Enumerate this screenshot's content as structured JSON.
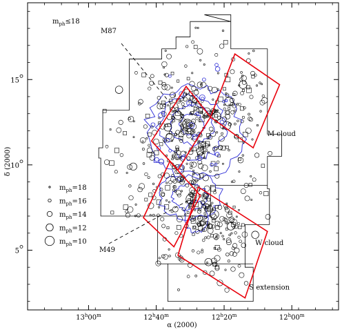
{
  "chart_data": {
    "type": "scatter",
    "xlabel": "α (2000)",
    "ylabel": "δ (2000)",
    "x_unit": "hours of right ascension (decreasing to the right)",
    "xlim": [
      13.3,
      11.77
    ],
    "ylim": [
      1.5,
      19.5
    ],
    "x_ticks": [
      {
        "value": 13.0,
        "h": "13",
        "m": "00"
      },
      {
        "value": 12.667,
        "h": "12",
        "m": "40"
      },
      {
        "value": 12.333,
        "h": "12",
        "m": "20"
      },
      {
        "value": 12.0,
        "h": "12",
        "m": "00"
      }
    ],
    "y_ticks": [
      {
        "value": 5,
        "label": "5"
      },
      {
        "value": 10,
        "label": "10"
      },
      {
        "value": 15,
        "label": "15"
      }
    ],
    "limit_label": "m",
    "limit_sub": "ph",
    "limit_value": "≤18",
    "legend": {
      "position": "left",
      "items": [
        {
          "mag": 18,
          "label": "=18"
        },
        {
          "mag": 16,
          "label": "=16"
        },
        {
          "mag": 14,
          "label": "=14"
        },
        {
          "mag": 12,
          "label": "=12"
        },
        {
          "mag": 10,
          "label": "=10"
        }
      ]
    },
    "annotations": [
      {
        "text": "M87",
        "target": [
          12.514,
          12.39
        ]
      },
      {
        "text": "M49",
        "target": [
          12.496,
          8.0
        ]
      },
      {
        "text": "M cloud",
        "x": 12.12,
        "y": 11.7
      },
      {
        "text": "W cloud",
        "x": 12.18,
        "y": 5.3
      },
      {
        "text": "S extension",
        "x": 12.21,
        "y": 2.7
      }
    ],
    "regions": [
      {
        "name": "M cloud",
        "corners": [
          [
            12.28,
            16.5
          ],
          [
            12.06,
            14.7
          ],
          [
            12.19,
            11.0
          ],
          [
            12.4,
            12.8
          ]
        ]
      },
      {
        "name": "center",
        "corners": [
          [
            12.52,
            14.6
          ],
          [
            12.4,
            12.8
          ],
          [
            12.56,
            9.7
          ],
          [
            12.69,
            11.4
          ]
        ]
      },
      {
        "name": "south",
        "corners": [
          [
            12.6,
            10.2
          ],
          [
            12.45,
            8.2
          ],
          [
            12.58,
            5.2
          ],
          [
            12.73,
            6.9
          ]
        ]
      },
      {
        "name": "W cloud",
        "corners": [
          [
            12.46,
            8.7
          ],
          [
            12.12,
            6.1
          ],
          [
            12.23,
            2.2
          ],
          [
            12.56,
            4.7
          ]
        ]
      }
    ],
    "survey_outline": [
      [
        12.43,
        18.8
      ],
      [
        12.3,
        18.8
      ],
      [
        12.3,
        18.4
      ],
      [
        12.5,
        18.4
      ],
      [
        12.5,
        17.5
      ],
      [
        12.57,
        17.5
      ],
      [
        12.57,
        16.8
      ],
      [
        12.64,
        16.8
      ],
      [
        12.64,
        16.2
      ],
      [
        12.8,
        16.2
      ],
      [
        12.8,
        13.2
      ],
      [
        12.93,
        13.2
      ],
      [
        12.93,
        11.0
      ],
      [
        12.95,
        11.0
      ],
      [
        12.95,
        10.4
      ],
      [
        12.94,
        10.4
      ],
      [
        12.94,
        7.0
      ],
      [
        12.66,
        7.0
      ],
      [
        12.66,
        4.2
      ],
      [
        12.61,
        4.2
      ],
      [
        12.61,
        2.0
      ],
      [
        12.19,
        2.0
      ],
      [
        12.19,
        4.0
      ],
      [
        12.23,
        4.0
      ],
      [
        12.23,
        6.5
      ],
      [
        12.11,
        6.5
      ],
      [
        12.11,
        8.6
      ],
      [
        12.12,
        8.6
      ],
      [
        12.12,
        10.5
      ],
      [
        12.05,
        10.5
      ],
      [
        12.05,
        11.8
      ],
      [
        12.12,
        11.8
      ],
      [
        12.12,
        16.8
      ],
      [
        12.3,
        16.8
      ],
      [
        12.3,
        18.4
      ]
    ],
    "inner_boxes": [
      [
        [
          12.66,
          7.0
        ],
        [
          12.4,
          7.0
        ],
        [
          12.4,
          8.8
        ],
        [
          12.12,
          8.8
        ]
      ],
      [
        [
          12.61,
          4.2
        ],
        [
          12.19,
          4.2
        ]
      ]
    ],
    "density_contours": [
      {
        "center": [
          12.49,
          12.35
        ],
        "rx": 0.06,
        "ry": 0.65
      },
      {
        "center": [
          12.49,
          12.35
        ],
        "rx": 0.105,
        "ry": 1.15
      },
      {
        "center": [
          12.49,
          12.2
        ],
        "rx": 0.165,
        "ry": 1.85
      },
      {
        "center": [
          12.48,
          11.9
        ],
        "rx": 0.235,
        "ry": 2.7
      },
      {
        "center": [
          12.5,
          8.1
        ],
        "rx": 0.085,
        "ry": 0.75
      },
      {
        "center": [
          12.5,
          8.2
        ],
        "rx": 0.15,
        "ry": 1.35
      },
      {
        "center": [
          12.47,
          6.95
        ],
        "rx": 0.06,
        "ry": 0.9
      }
    ],
    "sample_galaxies": [
      {
        "x": 12.514,
        "y": 12.39,
        "mag": 9.6
      },
      {
        "x": 12.496,
        "y": 8.0,
        "mag": 9.4
      },
      {
        "x": 12.42,
        "y": 13.1,
        "mag": 10.8
      },
      {
        "x": 12.56,
        "y": 12.9,
        "mag": 10.9
      },
      {
        "x": 12.6,
        "y": 11.6,
        "mag": 11.3
      },
      {
        "x": 12.37,
        "y": 12.85,
        "mag": 10.8
      },
      {
        "x": 12.58,
        "y": 13.4,
        "mag": 11.0
      },
      {
        "x": 12.32,
        "y": 12.3,
        "mag": 11.2
      },
      {
        "x": 12.61,
        "y": 12.2,
        "mag": 11.6
      },
      {
        "x": 12.31,
        "y": 13.7,
        "mag": 10.6
      },
      {
        "x": 12.24,
        "y": 14.7,
        "mag": 11.4
      },
      {
        "x": 12.45,
        "y": 10.8,
        "mag": 11.9
      },
      {
        "x": 12.55,
        "y": 9.7,
        "mag": 11.4
      },
      {
        "x": 12.47,
        "y": 9.3,
        "mag": 11.2
      },
      {
        "x": 12.3,
        "y": 6.4,
        "mag": 11.7
      },
      {
        "x": 12.38,
        "y": 7.1,
        "mag": 11.0
      },
      {
        "x": 12.18,
        "y": 5.9,
        "mag": 11.9
      },
      {
        "x": 12.85,
        "y": 14.4,
        "mag": 11.8
      },
      {
        "x": 12.78,
        "y": 9.9,
        "mag": 12.0
      },
      {
        "x": 12.41,
        "y": 4.3,
        "mag": 11.9
      }
    ]
  }
}
